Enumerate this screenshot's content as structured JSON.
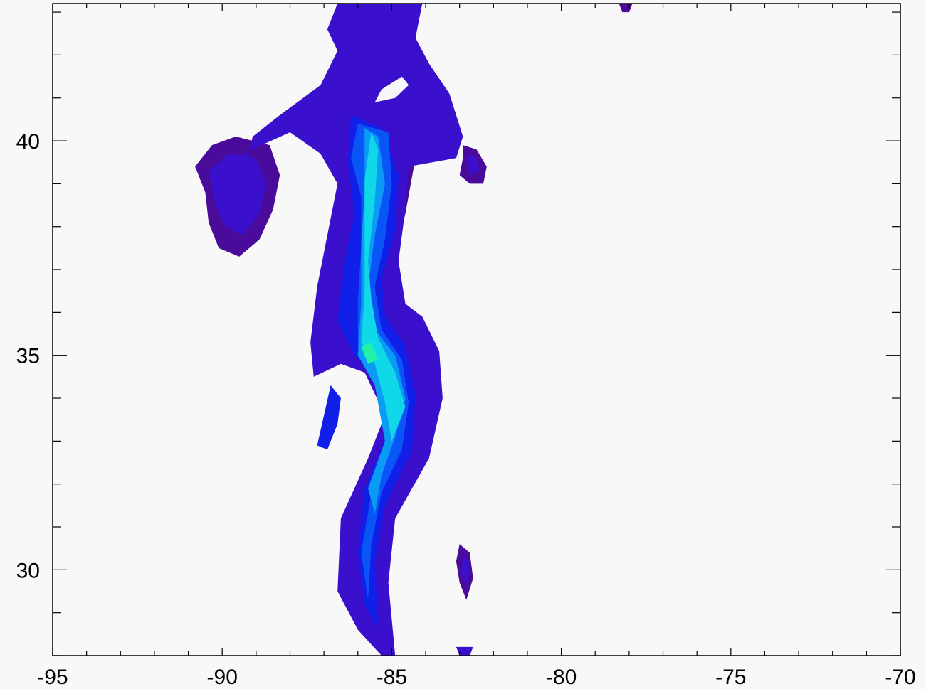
{
  "chart_data": {
    "type": "heatmap",
    "title": "",
    "xlabel": "",
    "ylabel": "",
    "xlim": [
      -95,
      -70
    ],
    "ylim": [
      28,
      43.2
    ],
    "grid": false,
    "legend": "none",
    "x_ticks": [
      {
        "value": -95,
        "label": "-95"
      },
      {
        "value": -90,
        "label": "-90"
      },
      {
        "value": -85,
        "label": "-85"
      },
      {
        "value": -80,
        "label": "-80"
      },
      {
        "value": -75,
        "label": "-75"
      },
      {
        "value": -70,
        "label": "-70"
      }
    ],
    "y_ticks": [
      {
        "value": 30,
        "label": "30"
      },
      {
        "value": 35,
        "label": "35"
      },
      {
        "value": 40,
        "label": "40"
      }
    ],
    "x_minor_step": 1,
    "y_minor_step": 1,
    "levels": [
      {
        "name": "level-1",
        "color": "#4a0a9a"
      },
      {
        "name": "level-2",
        "color": "#3a10cc"
      },
      {
        "name": "level-3",
        "color": "#1020e8"
      },
      {
        "name": "level-4",
        "color": "#0a55f5"
      },
      {
        "name": "level-5",
        "color": "#0a9cf5"
      },
      {
        "name": "level-6",
        "color": "#10d8e8"
      },
      {
        "name": "level-7",
        "color": "#20f0a8"
      }
    ],
    "regions": [
      {
        "name": "main-plume-outer",
        "level": 2,
        "points": [
          [
            -86.6,
            43.2
          ],
          [
            -84.1,
            43.2
          ],
          [
            -84.3,
            42.4
          ],
          [
            -83.9,
            41.8
          ],
          [
            -83.3,
            41.1
          ],
          [
            -82.9,
            40.1
          ],
          [
            -83.1,
            39.6
          ],
          [
            -84.5,
            39.4
          ],
          [
            -84.6,
            38.4
          ],
          [
            -84.8,
            37.2
          ],
          [
            -84.6,
            36.2
          ],
          [
            -84.1,
            35.9
          ],
          [
            -83.6,
            35.1
          ],
          [
            -83.5,
            34.0
          ],
          [
            -83.9,
            32.6
          ],
          [
            -84.9,
            31.2
          ],
          [
            -85.1,
            29.7
          ],
          [
            -84.9,
            28.0
          ],
          [
            -85.3,
            28.0
          ],
          [
            -86.0,
            28.6
          ],
          [
            -86.6,
            29.5
          ],
          [
            -86.5,
            31.2
          ],
          [
            -85.7,
            32.6
          ],
          [
            -85.2,
            33.6
          ],
          [
            -85.8,
            34.6
          ],
          [
            -86.5,
            34.8
          ],
          [
            -87.3,
            34.5
          ],
          [
            -87.4,
            35.3
          ],
          [
            -87.2,
            36.6
          ],
          [
            -86.9,
            37.8
          ],
          [
            -86.6,
            39.0
          ],
          [
            -87.1,
            39.7
          ],
          [
            -88.0,
            40.2
          ],
          [
            -89.4,
            39.7
          ],
          [
            -89.8,
            38.0
          ],
          [
            -89.1,
            40.1
          ],
          [
            -88.3,
            40.6
          ],
          [
            -87.1,
            41.3
          ],
          [
            -86.6,
            42.1
          ],
          [
            -86.9,
            42.6
          ]
        ]
      },
      {
        "name": "main-plume-edge",
        "level": 1,
        "points": [
          [
            -86.4,
            42.6
          ],
          [
            -85.0,
            42.9
          ],
          [
            -84.5,
            42.5
          ],
          [
            -84.1,
            41.7
          ],
          [
            -83.4,
            41.0
          ],
          [
            -83.3,
            40.0
          ],
          [
            -84.3,
            39.6
          ],
          [
            -84.6,
            38.3
          ],
          [
            -85.0,
            37.0
          ],
          [
            -84.8,
            36.4
          ],
          [
            -84.2,
            35.8
          ],
          [
            -83.8,
            35.0
          ],
          [
            -83.8,
            33.9
          ],
          [
            -84.2,
            32.6
          ],
          [
            -85.0,
            31.2
          ],
          [
            -85.3,
            29.5
          ],
          [
            -85.2,
            28.2
          ],
          [
            -85.9,
            28.8
          ],
          [
            -86.3,
            29.7
          ],
          [
            -86.2,
            31.2
          ],
          [
            -85.5,
            32.6
          ],
          [
            -85.0,
            33.6
          ],
          [
            -85.6,
            34.5
          ],
          [
            -86.7,
            35.0
          ],
          [
            -86.9,
            36.0
          ],
          [
            -86.7,
            37.8
          ],
          [
            -86.4,
            39.0
          ],
          [
            -86.7,
            40.0
          ],
          [
            -87.5,
            40.6
          ],
          [
            -86.6,
            41.3
          ],
          [
            -86.2,
            42.1
          ]
        ]
      },
      {
        "name": "west-branch",
        "level": 1,
        "points": [
          [
            -90.8,
            39.4
          ],
          [
            -90.3,
            39.9
          ],
          [
            -89.6,
            40.1
          ],
          [
            -88.6,
            39.9
          ],
          [
            -88.3,
            39.2
          ],
          [
            -88.5,
            38.4
          ],
          [
            -88.9,
            37.7
          ],
          [
            -89.5,
            37.3
          ],
          [
            -90.1,
            37.5
          ],
          [
            -90.4,
            38.1
          ],
          [
            -90.5,
            38.8
          ]
        ]
      },
      {
        "name": "west-branch-core",
        "level": 2,
        "points": [
          [
            -90.4,
            39.3
          ],
          [
            -89.8,
            39.7
          ],
          [
            -89.0,
            39.6
          ],
          [
            -88.7,
            39.0
          ],
          [
            -88.9,
            38.3
          ],
          [
            -89.4,
            37.8
          ],
          [
            -89.9,
            38.0
          ],
          [
            -90.2,
            38.5
          ]
        ]
      },
      {
        "name": "upper-core",
        "level": 3,
        "points": [
          [
            -86.2,
            40.6
          ],
          [
            -85.3,
            40.3
          ],
          [
            -84.8,
            39.2
          ],
          [
            -84.9,
            37.9
          ],
          [
            -85.3,
            36.8
          ],
          [
            -85.2,
            35.9
          ],
          [
            -84.6,
            35.2
          ],
          [
            -84.3,
            34.1
          ],
          [
            -84.4,
            32.8
          ],
          [
            -85.2,
            31.5
          ],
          [
            -85.5,
            30.2
          ],
          [
            -85.4,
            28.6
          ],
          [
            -85.8,
            29.2
          ],
          [
            -86.0,
            30.4
          ],
          [
            -85.8,
            31.9
          ],
          [
            -85.0,
            33.4
          ],
          [
            -85.3,
            34.4
          ],
          [
            -86.1,
            35.0
          ],
          [
            -86.6,
            35.8
          ],
          [
            -86.4,
            37.1
          ],
          [
            -86.1,
            38.3
          ],
          [
            -86.3,
            39.5
          ]
        ]
      },
      {
        "name": "upper-core-inner",
        "level": 4,
        "points": [
          [
            -86.0,
            40.4
          ],
          [
            -85.1,
            40.2
          ],
          [
            -85.0,
            39.0
          ],
          [
            -85.2,
            37.7
          ],
          [
            -85.5,
            36.6
          ],
          [
            -85.3,
            35.6
          ],
          [
            -84.7,
            34.9
          ],
          [
            -84.5,
            33.9
          ],
          [
            -84.7,
            32.8
          ],
          [
            -85.3,
            31.8
          ],
          [
            -85.6,
            30.6
          ],
          [
            -85.7,
            29.3
          ],
          [
            -85.9,
            30.4
          ],
          [
            -85.6,
            31.8
          ],
          [
            -84.9,
            33.2
          ],
          [
            -85.4,
            34.5
          ],
          [
            -86.0,
            35.2
          ],
          [
            -86.0,
            36.3
          ],
          [
            -85.9,
            37.5
          ],
          [
            -85.9,
            38.7
          ],
          [
            -86.2,
            39.6
          ]
        ]
      },
      {
        "name": "central-band",
        "level": 5,
        "points": [
          [
            -85.8,
            40.3
          ],
          [
            -85.4,
            40.1
          ],
          [
            -85.2,
            39.0
          ],
          [
            -85.5,
            37.8
          ],
          [
            -85.7,
            36.6
          ],
          [
            -85.5,
            35.6
          ],
          [
            -84.9,
            35.0
          ],
          [
            -84.6,
            34.0
          ],
          [
            -84.9,
            33.1
          ],
          [
            -85.3,
            32.2
          ],
          [
            -85.5,
            31.3
          ],
          [
            -85.7,
            31.9
          ],
          [
            -85.2,
            33.0
          ],
          [
            -85.5,
            34.3
          ],
          [
            -86.0,
            35.0
          ],
          [
            -85.9,
            36.2
          ],
          [
            -85.9,
            37.6
          ],
          [
            -85.8,
            38.8
          ]
        ]
      },
      {
        "name": "central-peak",
        "level": 6,
        "points": [
          [
            -85.6,
            40.2
          ],
          [
            -85.4,
            39.8
          ],
          [
            -85.5,
            38.6
          ],
          [
            -85.7,
            37.2
          ],
          [
            -85.6,
            36.3
          ],
          [
            -85.4,
            35.4
          ],
          [
            -84.9,
            34.6
          ],
          [
            -84.6,
            33.8
          ],
          [
            -85.0,
            33.0
          ],
          [
            -85.2,
            33.9
          ],
          [
            -85.5,
            34.8
          ],
          [
            -85.9,
            35.3
          ],
          [
            -85.8,
            36.5
          ],
          [
            -85.8,
            37.9
          ],
          [
            -85.8,
            39.1
          ]
        ]
      },
      {
        "name": "local-max",
        "level": 7,
        "points": [
          [
            -85.9,
            35.2
          ],
          [
            -85.6,
            35.3
          ],
          [
            -85.4,
            34.9
          ],
          [
            -85.7,
            34.8
          ]
        ]
      },
      {
        "name": "east-fragment",
        "level": 1,
        "points": [
          [
            -82.9,
            39.9
          ],
          [
            -82.5,
            39.8
          ],
          [
            -82.2,
            39.4
          ],
          [
            -82.3,
            39.0
          ],
          [
            -82.7,
            39.0
          ],
          [
            -83.0,
            39.2
          ],
          [
            -82.9,
            39.6
          ]
        ]
      },
      {
        "name": "east-fragment-core",
        "level": 2,
        "points": [
          [
            -82.8,
            39.7
          ],
          [
            -82.5,
            39.6
          ],
          [
            -82.4,
            39.3
          ],
          [
            -82.7,
            39.2
          ]
        ]
      },
      {
        "name": "southwest-fragment",
        "level": 3,
        "points": [
          [
            -86.8,
            34.3
          ],
          [
            -86.5,
            34.0
          ],
          [
            -86.6,
            33.4
          ],
          [
            -86.9,
            32.8
          ],
          [
            -87.2,
            32.9
          ],
          [
            -87.0,
            33.6
          ]
        ]
      },
      {
        "name": "south-blob",
        "level": 1,
        "points": [
          [
            -83.0,
            30.6
          ],
          [
            -82.7,
            30.4
          ],
          [
            -82.6,
            29.8
          ],
          [
            -82.8,
            29.3
          ],
          [
            -83.0,
            29.7
          ],
          [
            -83.1,
            30.2
          ]
        ]
      },
      {
        "name": "south-blob-core",
        "level": 2,
        "points": [
          [
            -82.9,
            30.4
          ],
          [
            -82.7,
            30.1
          ],
          [
            -82.8,
            29.6
          ],
          [
            -82.95,
            29.9
          ]
        ]
      },
      {
        "name": "bottom-dot",
        "level": 2,
        "points": [
          [
            -83.1,
            28.2
          ],
          [
            -82.6,
            28.2
          ],
          [
            -82.7,
            28.0
          ],
          [
            -83.0,
            28.0
          ]
        ]
      },
      {
        "name": "northeast-dot",
        "level": 1,
        "points": [
          [
            -78.3,
            43.2
          ],
          [
            -77.9,
            43.2
          ],
          [
            -78.0,
            43.0
          ],
          [
            -78.2,
            43.0
          ]
        ]
      }
    ],
    "holes": [
      {
        "name": "plume-hole",
        "points": [
          [
            -85.3,
            41.2
          ],
          [
            -84.7,
            41.5
          ],
          [
            -84.5,
            41.3
          ],
          [
            -84.9,
            41.0
          ],
          [
            -85.5,
            40.9
          ]
        ]
      }
    ]
  }
}
